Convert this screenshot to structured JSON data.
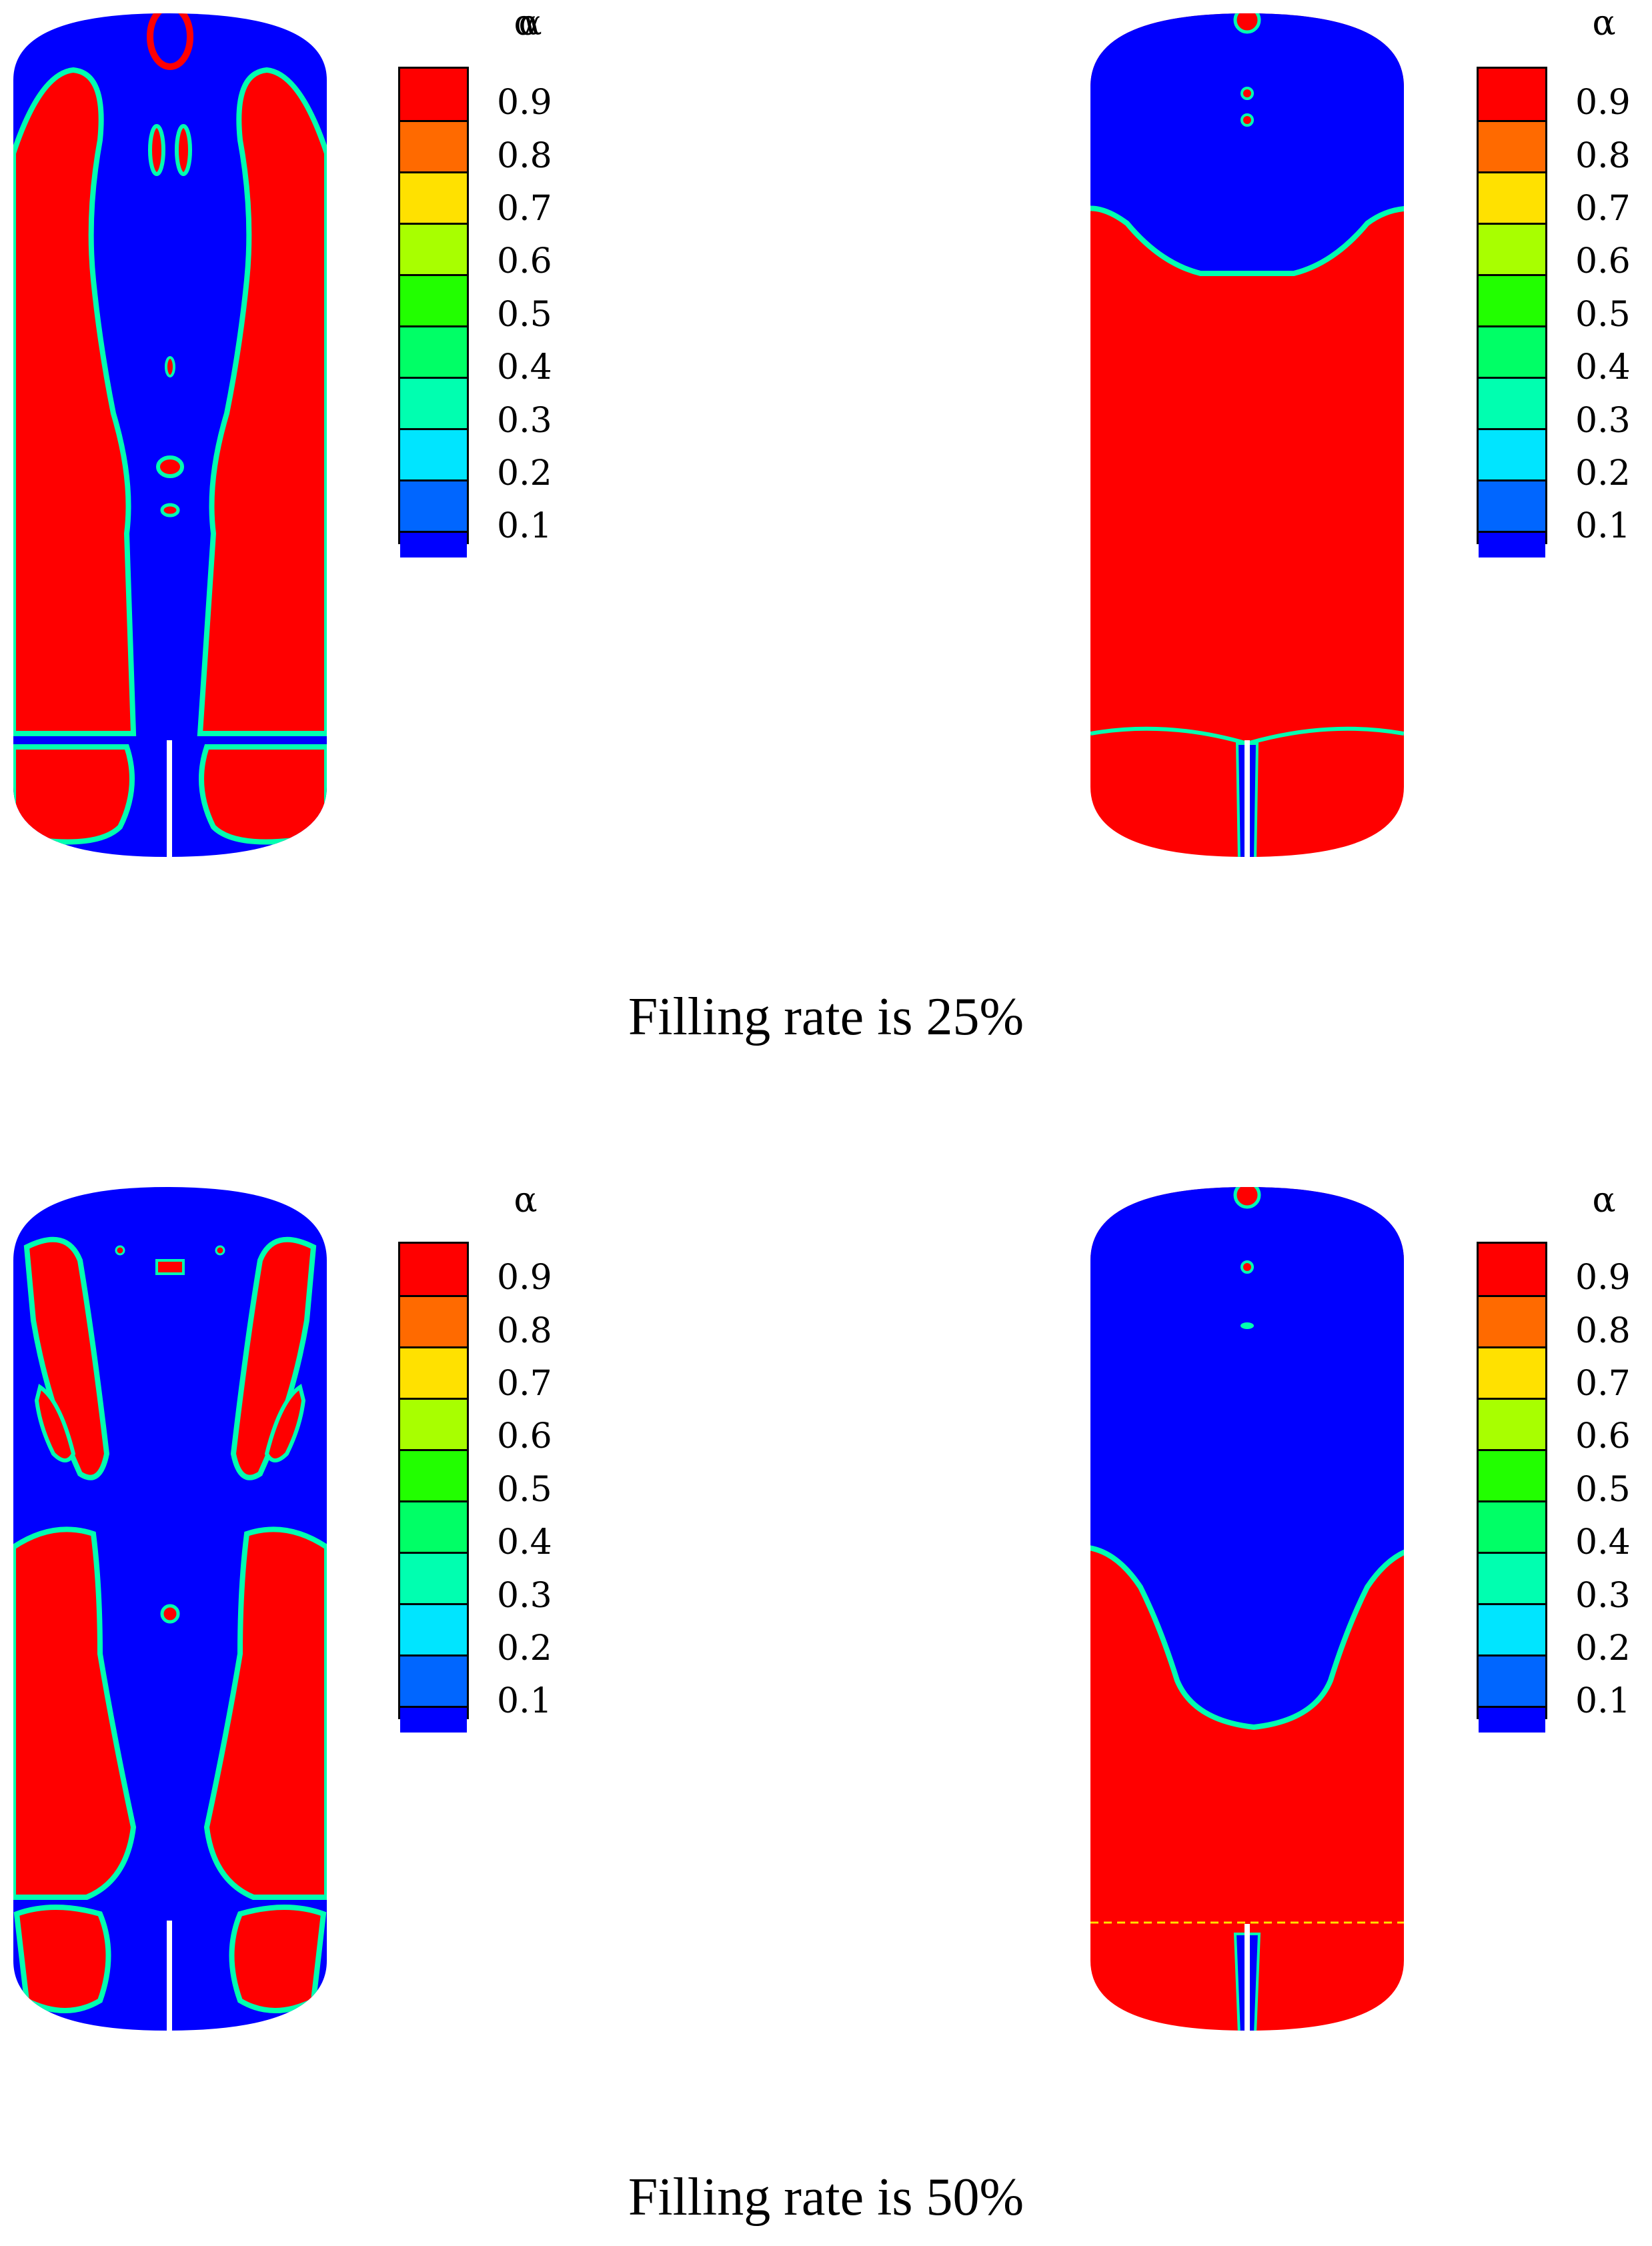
{
  "legend": {
    "symbol": "α",
    "labels": [
      "0.9",
      "0.8",
      "0.7",
      "0.6",
      "0.5",
      "0.4",
      "0.3",
      "0.2",
      "0.1"
    ],
    "colors": [
      "#ff0000",
      "#ff6a00",
      "#ffe100",
      "#a8ff00",
      "#22ff00",
      "#00ff66",
      "#00ffb0",
      "#00e5ff",
      "#0066ff",
      "#0000ff"
    ]
  },
  "colors": {
    "liquid": "#ff0000",
    "gas": "#0000ff",
    "interface": "#00ffb0",
    "pipe": "#ffffff"
  },
  "captions": {
    "row1": "Filling rate is 25%",
    "row2": "Filling rate is 50%"
  }
}
